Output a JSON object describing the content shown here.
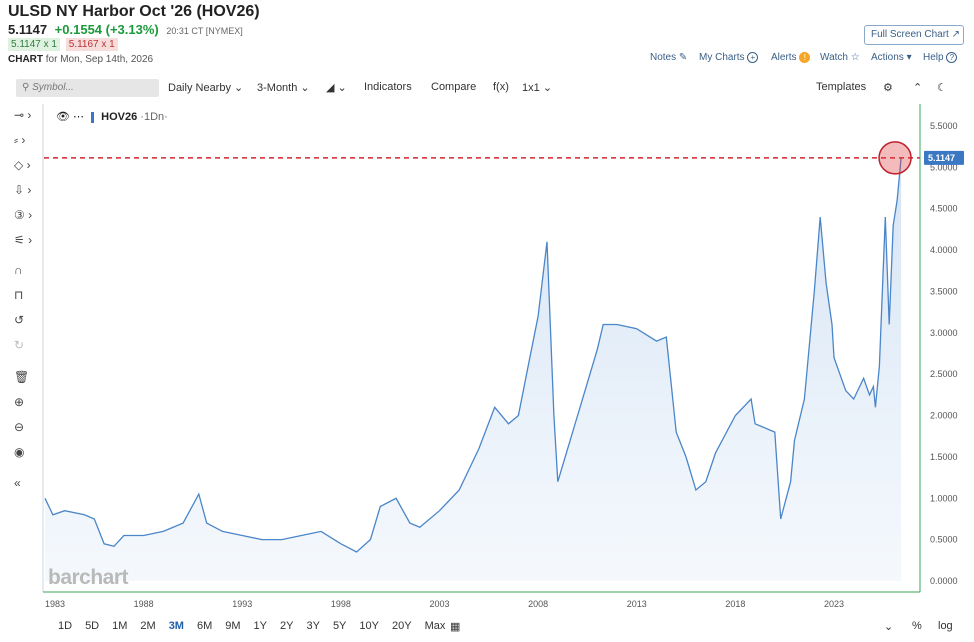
{
  "header": {
    "title": "ULSD NY Harbor Oct '26 (HOV26)",
    "last": "5.1147",
    "change": "+0.1554 (+3.13%)",
    "time": "20:31 CT [NYMEX]",
    "bid": "5.1147 x 1",
    "ask": "5.1167 x 1",
    "chart_label": "CHART",
    "chart_for": "for Mon, Sep 14th, 2026",
    "full_screen": "Full Screen Chart"
  },
  "top_links": {
    "notes": "Notes",
    "my_charts": "My Charts",
    "alerts": "Alerts",
    "watch": "Watch",
    "actions": "Actions",
    "help": "Help"
  },
  "toolbar": {
    "symbol_placeholder": "Symbol...",
    "daily_nearby": "Daily Nearby",
    "period": "3-Month",
    "indicators": "Indicators",
    "compare": "Compare",
    "fx": "f(x)",
    "layout": "1x1",
    "templates": "Templates"
  },
  "legend": {
    "symbol": "HOV26",
    "interval": "·1Dn·"
  },
  "brand": "barchart",
  "period_buttons": [
    "1D",
    "5D",
    "1M",
    "2M",
    "3M",
    "6M",
    "9M",
    "1Y",
    "2Y",
    "3Y",
    "5Y",
    "10Y",
    "20Y",
    "Max"
  ],
  "active_period": "3M",
  "bottom_right": {
    "percent": "%",
    "log": "log"
  },
  "colors": {
    "line": "#4a86c8",
    "area": "#dde9f6",
    "current_line": "#d0262f",
    "price_tag": "#3a78c4"
  },
  "chart_data": {
    "type": "area",
    "series": [
      {
        "name": "HOV26",
        "x": [
          1983,
          1983.4,
          1984,
          1985,
          1985.5,
          1986,
          1986.5,
          1987,
          1988,
          1989,
          1990,
          1990.8,
          1991.2,
          1992,
          1993,
          1994,
          1995,
          1996,
          1997,
          1998,
          1998.8,
          1999.5,
          2000,
          2000.8,
          2001.5,
          2002,
          2003,
          2004,
          2005,
          2005.8,
          2006.5,
          2007,
          2007.5,
          2008,
          2008.45,
          2008.8,
          2009,
          2009.5,
          2010,
          2011,
          2011.3,
          2012,
          2013,
          2014,
          2014.5,
          2015,
          2015.5,
          2016,
          2016.5,
          2017,
          2018,
          2018.8,
          2019,
          2020,
          2020.3,
          2020.8,
          2021,
          2021.5,
          2022,
          2022.3,
          2022.6,
          2022.9,
          2023,
          2023.3,
          2023.6,
          2024,
          2024.5,
          2024.8,
          2025,
          2025.1,
          2025.3,
          2025.6,
          2025.8,
          2026,
          2026.2,
          2026.4
        ],
        "values": [
          1.0,
          0.8,
          0.85,
          0.8,
          0.75,
          0.45,
          0.42,
          0.55,
          0.55,
          0.6,
          0.7,
          1.05,
          0.7,
          0.6,
          0.55,
          0.5,
          0.5,
          0.55,
          0.6,
          0.45,
          0.35,
          0.5,
          0.9,
          1.0,
          0.7,
          0.65,
          0.85,
          1.1,
          1.6,
          2.1,
          1.9,
          2.0,
          2.6,
          3.2,
          4.1,
          2.0,
          1.2,
          1.6,
          2.0,
          2.8,
          3.1,
          3.1,
          3.05,
          2.9,
          2.95,
          1.8,
          1.5,
          1.1,
          1.2,
          1.55,
          2.0,
          2.2,
          1.9,
          1.8,
          0.75,
          1.2,
          1.7,
          2.2,
          3.5,
          4.4,
          3.6,
          3.1,
          2.7,
          2.5,
          2.3,
          2.2,
          2.45,
          2.25,
          2.35,
          2.1,
          2.6,
          4.4,
          3.1,
          4.3,
          4.6,
          5.1147
        ]
      }
    ],
    "xlabel": "",
    "ylabel": "",
    "x_ticks": [
      "1983",
      "1988",
      "1993",
      "1998",
      "2003",
      "2008",
      "2013",
      "2018",
      "2023"
    ],
    "x_tick_values": [
      1983,
      1988,
      1993,
      1998,
      2003,
      2008,
      2013,
      2018,
      2023
    ],
    "xlim": [
      1982.9,
      2026.6
    ],
    "y_ticks": [
      "0.0000",
      "0.5000",
      "1.0000",
      "1.5000",
      "2.0000",
      "2.5000",
      "3.0000",
      "3.5000",
      "4.0000",
      "4.5000",
      "5.0000",
      "5.5000"
    ],
    "ylim": [
      0,
      5.5
    ],
    "current_value": 5.1147,
    "current_label": "5.1147",
    "grid": false
  }
}
